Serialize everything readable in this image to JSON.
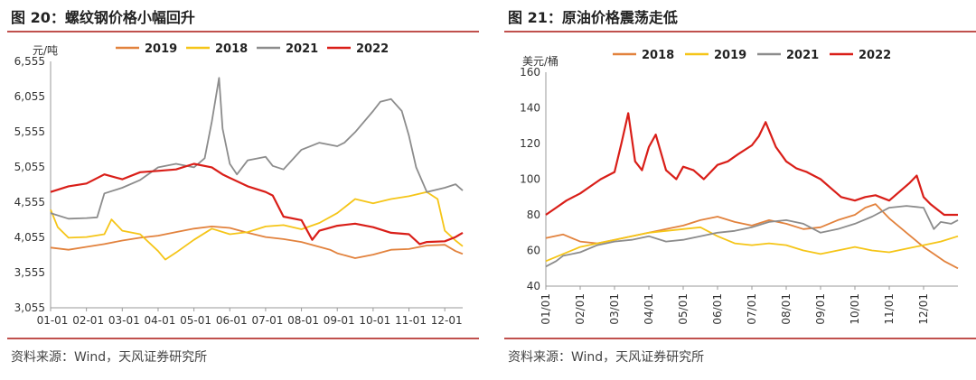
{
  "left": {
    "title": "图 20：螺纹钢价格小幅回升",
    "source": "资料来源：Wind，天风证券研究所",
    "chart_data": {
      "type": "line",
      "unit_label": "元/吨",
      "ylim": [
        3055,
        6555
      ],
      "yticks": [
        3055,
        3555,
        4055,
        4555,
        5055,
        5555,
        6055,
        6555
      ],
      "ytick_labels": [
        "3,055",
        "3,555",
        "4,055",
        "4,555",
        "5,055",
        "5,555",
        "6,055",
        "6,555"
      ],
      "xlim": [
        0,
        11.5
      ],
      "xtick_labels": [
        "01-01",
        "02-01",
        "03-01",
        "04-01",
        "05-01",
        "06-01",
        "07-01",
        "08-01",
        "09-01",
        "10-01",
        "11-01",
        "12-01"
      ],
      "legend_position": "top",
      "series": [
        {
          "name": "2019",
          "color": "#e2823d",
          "x": [
            0,
            0.5,
            1,
            1.5,
            2,
            2.5,
            3,
            3.5,
            4,
            4.5,
            5,
            5.5,
            6,
            6.5,
            7,
            7.5,
            7.8,
            8,
            8.5,
            9,
            9.5,
            10,
            10.5,
            11,
            11.3,
            11.5
          ],
          "y": [
            3910,
            3880,
            3920,
            3960,
            4010,
            4050,
            4080,
            4130,
            4180,
            4210,
            4190,
            4120,
            4060,
            4030,
            3990,
            3920,
            3880,
            3830,
            3760,
            3810,
            3880,
            3890,
            3940,
            3950,
            3860,
            3820
          ]
        },
        {
          "name": "2018",
          "color": "#f5c518",
          "x": [
            0,
            0.2,
            0.5,
            1,
            1.5,
            1.7,
            2,
            2.5,
            3,
            3.2,
            3.5,
            4,
            4.5,
            5,
            5.5,
            6,
            6.5,
            7,
            7.5,
            8,
            8.5,
            9,
            9.5,
            10,
            10.5,
            10.8,
            11,
            11.3,
            11.5
          ],
          "y": [
            4450,
            4200,
            4050,
            4060,
            4100,
            4310,
            4150,
            4100,
            3860,
            3740,
            3840,
            4020,
            4180,
            4100,
            4130,
            4210,
            4230,
            4170,
            4260,
            4400,
            4600,
            4540,
            4600,
            4640,
            4700,
            4600,
            4150,
            4010,
            3930
          ]
        },
        {
          "name": "2021",
          "color": "#8c8c8c",
          "x": [
            0,
            0.5,
            1,
            1.3,
            1.5,
            2,
            2.5,
            3,
            3.5,
            4,
            4.3,
            4.5,
            4.7,
            4.8,
            5,
            5.2,
            5.5,
            6,
            6.2,
            6.5,
            7,
            7.5,
            8,
            8.2,
            8.5,
            9,
            9.2,
            9.5,
            9.8,
            10,
            10.2,
            10.5,
            11,
            11.3,
            11.5
          ],
          "y": [
            4400,
            4320,
            4330,
            4340,
            4680,
            4760,
            4870,
            5050,
            5100,
            5050,
            5180,
            5700,
            6320,
            5600,
            5100,
            4950,
            5150,
            5200,
            5070,
            5020,
            5300,
            5400,
            5350,
            5400,
            5550,
            5850,
            5980,
            6020,
            5850,
            5500,
            5050,
            4700,
            4760,
            4810,
            4720
          ]
        },
        {
          "name": "2022",
          "color": "#d91e18",
          "x": [
            0,
            0.5,
            1,
            1.5,
            2,
            2.5,
            3,
            3.5,
            4,
            4.5,
            4.8,
            5,
            5.5,
            6,
            6.2,
            6.5,
            7,
            7.3,
            7.5,
            8,
            8.5,
            9,
            9.5,
            10,
            10.3,
            10.5,
            11,
            11.3,
            11.5
          ],
          "y": [
            4700,
            4780,
            4820,
            4950,
            4880,
            4980,
            5000,
            5020,
            5100,
            5050,
            4950,
            4900,
            4780,
            4700,
            4650,
            4350,
            4300,
            4020,
            4150,
            4220,
            4250,
            4200,
            4120,
            4100,
            3960,
            3990,
            4000,
            4060,
            4120
          ]
        }
      ]
    }
  },
  "right": {
    "title": "图 21：原油价格震荡走低",
    "source": "资料来源：Wind，天风证券研究所",
    "chart_data": {
      "type": "line",
      "unit_label": "美元/桶",
      "ylim": [
        40,
        160
      ],
      "yticks": [
        40,
        60,
        80,
        100,
        120,
        140,
        160
      ],
      "ytick_labels": [
        "40",
        "60",
        "80",
        "100",
        "120",
        "140",
        "160"
      ],
      "xlim": [
        0,
        12
      ],
      "xtick_labels": [
        "01/01",
        "02/01",
        "03/01",
        "04/01",
        "05/01",
        "06/01",
        "07/01",
        "08/01",
        "09/01",
        "10/01",
        "11/01",
        "12/01"
      ],
      "legend_position": "top",
      "series": [
        {
          "name": "2018",
          "color": "#e2823d",
          "x": [
            0,
            0.5,
            1,
            1.5,
            2,
            2.5,
            3,
            3.5,
            4,
            4.5,
            5,
            5.5,
            6,
            6.5,
            7,
            7.5,
            8,
            8.5,
            9,
            9.3,
            9.6,
            10,
            10.5,
            11,
            11.3,
            11.6,
            12
          ],
          "y": [
            67,
            69,
            65,
            64,
            66,
            68,
            70,
            72,
            74,
            77,
            79,
            76,
            74,
            77,
            75,
            72,
            73,
            77,
            80,
            84,
            86,
            78,
            70,
            62,
            58,
            54,
            50
          ]
        },
        {
          "name": "2019",
          "color": "#f5c518",
          "x": [
            0,
            0.5,
            1,
            1.5,
            2,
            2.5,
            3,
            3.5,
            4,
            4.5,
            5,
            5.5,
            6,
            6.5,
            7,
            7.5,
            8,
            8.5,
            9,
            9.5,
            10,
            10.5,
            11,
            11.5,
            12
          ],
          "y": [
            54,
            58,
            62,
            64,
            66,
            68,
            70,
            71,
            72,
            73,
            68,
            64,
            63,
            64,
            63,
            60,
            58,
            60,
            62,
            60,
            59,
            61,
            63,
            65,
            68
          ]
        },
        {
          "name": "2021",
          "color": "#8c8c8c",
          "x": [
            0,
            0.3,
            0.5,
            1,
            1.5,
            2,
            2.5,
            3,
            3.5,
            4,
            4.5,
            5,
            5.5,
            6,
            6.5,
            7,
            7.5,
            8,
            8.5,
            9,
            9.5,
            10,
            10.5,
            11,
            11.3,
            11.5,
            11.8,
            12
          ],
          "y": [
            51,
            54,
            57,
            59,
            63,
            65,
            66,
            68,
            65,
            66,
            68,
            70,
            71,
            73,
            76,
            77,
            75,
            70,
            72,
            75,
            79,
            84,
            85,
            84,
            72,
            76,
            75,
            77
          ]
        },
        {
          "name": "2022",
          "color": "#d91e18",
          "x": [
            0,
            0.3,
            0.6,
            1,
            1.3,
            1.6,
            2,
            2.2,
            2.4,
            2.6,
            2.8,
            3,
            3.2,
            3.5,
            3.8,
            4,
            4.3,
            4.6,
            5,
            5.3,
            5.6,
            6,
            6.2,
            6.4,
            6.7,
            7,
            7.3,
            7.6,
            8,
            8.3,
            8.6,
            9,
            9.3,
            9.6,
            10,
            10.3,
            10.6,
            10.8,
            11,
            11.2,
            11.4,
            11.6,
            12
          ],
          "y": [
            80,
            84,
            88,
            92,
            96,
            100,
            104,
            120,
            137,
            110,
            105,
            118,
            125,
            105,
            100,
            107,
            105,
            100,
            108,
            110,
            114,
            119,
            124,
            132,
            118,
            110,
            106,
            104,
            100,
            95,
            90,
            88,
            90,
            91,
            88,
            93,
            98,
            102,
            90,
            86,
            83,
            80,
            80
          ]
        }
      ]
    }
  }
}
